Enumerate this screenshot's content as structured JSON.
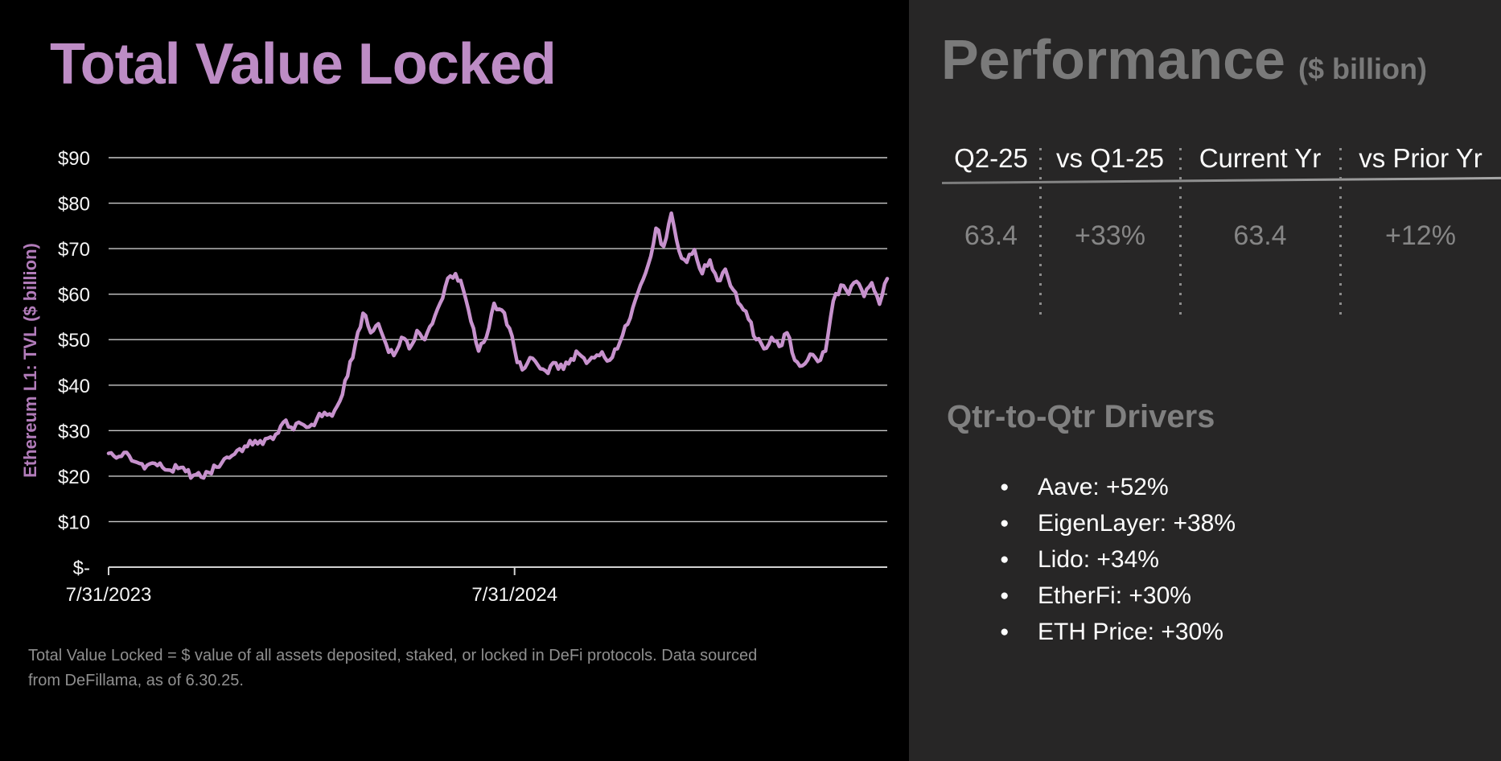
{
  "chart": {
    "title": "Total Value Locked",
    "y_axis_title": "Ethereum L1: TVL ($ billion)",
    "footnote": "Total Value Locked = $ value of all assets deposited, staked, or locked in DeFi protocols. Data sourced from DeFillama, as of 6.30.25."
  },
  "chart_data": {
    "type": "line",
    "title": "Total Value Locked",
    "ylabel": "Ethereum L1: TVL ($ billion)",
    "ylim": [
      0,
      90
    ],
    "grid": "horizontal",
    "legend": "none",
    "line_color": "#c792cd",
    "x_start": "7/31/2023",
    "x_end": "6/30/2025",
    "sampling": "approx weekly",
    "y_ticks": [
      {
        "label": "$90",
        "value": 90
      },
      {
        "label": "$80",
        "value": 80
      },
      {
        "label": "$70",
        "value": 70
      },
      {
        "label": "$60",
        "value": 60
      },
      {
        "label": "$50",
        "value": 50
      },
      {
        "label": "$40",
        "value": 40
      },
      {
        "label": "$30",
        "value": 30
      },
      {
        "label": "$20",
        "value": 20
      },
      {
        "label": "$10",
        "value": 10
      },
      {
        "label": "$-",
        "value": 0
      }
    ],
    "x_ticks": [
      {
        "label": "7/31/2023",
        "frac": 0
      },
      {
        "label": "7/31/2024",
        "frac": 0.5214
      }
    ],
    "series": [
      {
        "name": "Ethereum L1 TVL ($ billion)",
        "values": [
          25.0,
          24.0,
          25.2,
          23.4,
          22.8,
          22.4,
          22.8,
          21.9,
          21.3,
          21.7,
          21.0,
          20.2,
          19.8,
          20.8,
          22.0,
          23.8,
          24.5,
          26.0,
          26.5,
          27.8,
          27.0,
          28.6,
          29.5,
          32.3,
          30.2,
          31.5,
          30.8,
          32.5,
          34.0,
          33.2,
          36.5,
          42.0,
          49.0,
          55.8,
          51.5,
          53.5,
          49.0,
          46.5,
          50.5,
          48.0,
          52.0,
          50.0,
          53.5,
          58.0,
          63.5,
          64.5,
          61.0,
          54.0,
          47.5,
          50.5,
          58.0,
          56.5,
          52.5,
          45.0,
          43.8,
          45.9,
          43.6,
          42.6,
          44.9,
          43.5,
          45.8,
          46.9,
          44.8,
          46.0,
          47.3,
          45.5,
          48.0,
          53.0,
          57.0,
          62.0,
          66.5,
          74.5,
          70.5,
          77.8,
          69.5,
          67.0,
          69.8,
          64.5,
          67.5,
          63.0,
          65.5,
          61.0,
          57.5,
          54.5,
          50.0,
          48.0,
          50.5,
          48.5,
          51.5,
          45.5,
          44.3,
          46.8,
          45.2,
          47.5,
          58.5,
          62.0,
          60.0,
          62.8,
          59.5,
          62.5,
          57.8,
          63.4
        ]
      }
    ]
  },
  "performance": {
    "title": "Performance",
    "subtitle": "($ billion)",
    "columns": [
      {
        "header": "Q2-25",
        "value": "63.4"
      },
      {
        "header": "vs Q1-25",
        "value": "+33%"
      },
      {
        "header": "Current Yr",
        "value": "63.4"
      },
      {
        "header": "vs Prior Yr",
        "value": "+12%"
      }
    ]
  },
  "drivers": {
    "title": "Qtr-to-Qtr Drivers",
    "bullet": "●",
    "items": [
      "Aave: +52%",
      "EigenLayer: +38%",
      "Lido: +34%",
      "EtherFi: +30%",
      "ETH Price: +30%"
    ]
  }
}
